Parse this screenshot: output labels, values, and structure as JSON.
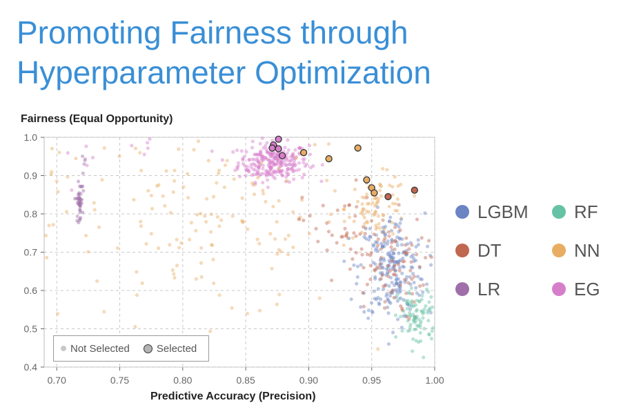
{
  "title_line1": "Promoting Fairness through",
  "title_line2": "Hyperparameter Optimization",
  "legend": {
    "items": [
      {
        "label": "LGBM",
        "color": "#6b84c4"
      },
      {
        "label": "RF",
        "color": "#66c2a5"
      },
      {
        "label": "DT",
        "color": "#c0674f"
      },
      {
        "label": "NN",
        "color": "#e8ad63"
      },
      {
        "label": "LR",
        "color": "#9e6fa8"
      },
      {
        "label": "EG",
        "color": "#d77ecb"
      }
    ],
    "not_selected_label": "Not Selected",
    "selected_label": "Selected"
  },
  "chart_data": {
    "type": "scatter",
    "xlabel": "Predictive Accuracy (Precision)",
    "ylabel": "Fairness (Equal Opportunity)",
    "xlim": [
      0.69,
      1.0
    ],
    "ylim": [
      0.4,
      1.0
    ],
    "xticks": [
      "0.70",
      "0.75",
      "0.80",
      "0.85",
      "0.90",
      "0.95",
      "1.00"
    ],
    "yticks": [
      "0.4",
      "0.5",
      "0.6",
      "0.7",
      "0.8",
      "0.9",
      "1.0"
    ],
    "grid": true,
    "legend_position": "right",
    "series": [
      {
        "name": "EG",
        "clusters": [
          {
            "cx": 0.872,
            "cy": 0.935,
            "sx": 0.014,
            "sy": 0.025,
            "n": 260
          },
          {
            "cx": 0.718,
            "cy": 0.93,
            "sx": 0.006,
            "sy": 0.02,
            "n": 6
          },
          {
            "cx": 0.77,
            "cy": 0.98,
            "sx": 0.01,
            "sy": 0.02,
            "n": 5
          }
        ],
        "selected": [
          [
            0.876,
            0.995
          ],
          [
            0.872,
            0.98
          ],
          [
            0.871,
            0.972
          ],
          [
            0.876,
            0.97
          ],
          [
            0.879,
            0.952
          ]
        ]
      },
      {
        "name": "NN",
        "clusters": [
          {
            "cx": 0.82,
            "cy": 0.78,
            "sx": 0.06,
            "sy": 0.13,
            "n": 150
          },
          {
            "cx": 0.955,
            "cy": 0.82,
            "sx": 0.012,
            "sy": 0.04,
            "n": 80
          },
          {
            "cx": 0.7,
            "cy": 0.85,
            "sx": 0.006,
            "sy": 0.08,
            "n": 10
          }
        ],
        "selected": [
          [
            0.896,
            0.96
          ],
          [
            0.939,
            0.972
          ],
          [
            0.916,
            0.944
          ],
          [
            0.946,
            0.889
          ],
          [
            0.95,
            0.868
          ],
          [
            0.952,
            0.855
          ]
        ]
      },
      {
        "name": "LGBM",
        "clusters": [
          {
            "cx": 0.966,
            "cy": 0.66,
            "sx": 0.013,
            "sy": 0.07,
            "n": 220
          }
        ],
        "selected": []
      },
      {
        "name": "DT",
        "clusters": [
          {
            "cx": 0.962,
            "cy": 0.66,
            "sx": 0.015,
            "sy": 0.07,
            "n": 90
          },
          {
            "cx": 0.925,
            "cy": 0.76,
            "sx": 0.015,
            "sy": 0.06,
            "n": 35
          }
        ],
        "selected": [
          [
            0.963,
            0.845
          ],
          [
            0.984,
            0.862
          ]
        ]
      },
      {
        "name": "RF",
        "clusters": [
          {
            "cx": 0.987,
            "cy": 0.53,
            "sx": 0.008,
            "sy": 0.04,
            "n": 90
          }
        ],
        "selected": []
      },
      {
        "name": "LR",
        "clusters": [
          {
            "cx": 0.718,
            "cy": 0.83,
            "sx": 0.0012,
            "sy": 0.025,
            "n": 40
          },
          {
            "cx": 0.72,
            "cy": 0.92,
            "sx": 0.004,
            "sy": 0.02,
            "n": 5
          }
        ],
        "selected": []
      }
    ]
  }
}
